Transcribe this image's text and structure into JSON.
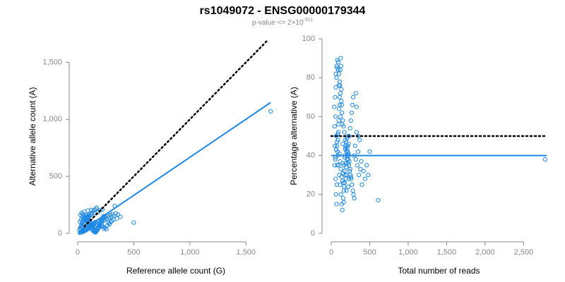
{
  "title": "rs1049072 - ENSG00000179344",
  "subtitle": {
    "base": "p-value <= 2×10",
    "exponent": "-311"
  },
  "colors": {
    "point": "#1E88E5",
    "line": "#1E88E5",
    "reference": "#000000",
    "tick": "#888888"
  },
  "chart_data": [
    {
      "type": "scatter",
      "xlabel": "Reference allele count (G)",
      "ylabel": "Alternative allele count (A)",
      "xlim": [
        0,
        1750
      ],
      "ylim": [
        0,
        1700
      ],
      "x_ticks": [
        "0",
        "500",
        "1,000",
        "1,500"
      ],
      "y_ticks": [
        "0",
        "500",
        "1,000",
        "1,500"
      ],
      "grid": false,
      "reference_line": {
        "style": "dotted",
        "slope": 1,
        "intercept": 0,
        "x_range": [
          60,
          1700
        ]
      },
      "fit_line": {
        "style": "solid",
        "slope": 0.667,
        "intercept": 0,
        "x_range": [
          60,
          1720
        ]
      },
      "points": [
        [
          20,
          5
        ],
        [
          25,
          10
        ],
        [
          30,
          8
        ],
        [
          35,
          15
        ],
        [
          40,
          20
        ],
        [
          45,
          12
        ],
        [
          50,
          25
        ],
        [
          55,
          18
        ],
        [
          60,
          30
        ],
        [
          65,
          22
        ],
        [
          70,
          40
        ],
        [
          75,
          28
        ],
        [
          80,
          35
        ],
        [
          85,
          45
        ],
        [
          90,
          50
        ],
        [
          95,
          38
        ],
        [
          100,
          60
        ],
        [
          105,
          55
        ],
        [
          110,
          48
        ],
        [
          115,
          70
        ],
        [
          120,
          65
        ],
        [
          125,
          80
        ],
        [
          130,
          58
        ],
        [
          135,
          75
        ],
        [
          140,
          90
        ],
        [
          145,
          68
        ],
        [
          150,
          85
        ],
        [
          160,
          100
        ],
        [
          170,
          78
        ],
        [
          180,
          95
        ],
        [
          190,
          110
        ],
        [
          200,
          88
        ],
        [
          210,
          120
        ],
        [
          220,
          105
        ],
        [
          230,
          130
        ],
        [
          240,
          115
        ],
        [
          250,
          140
        ],
        [
          260,
          125
        ],
        [
          270,
          150
        ],
        [
          280,
          135
        ],
        [
          290,
          160
        ],
        [
          300,
          145
        ],
        [
          310,
          170
        ],
        [
          320,
          155
        ],
        [
          340,
          175
        ],
        [
          330,
          240
        ],
        [
          30,
          40
        ],
        [
          40,
          55
        ],
        [
          50,
          65
        ],
        [
          60,
          80
        ],
        [
          70,
          95
        ],
        [
          80,
          110
        ],
        [
          90,
          125
        ],
        [
          100,
          140
        ],
        [
          110,
          155
        ],
        [
          120,
          165
        ],
        [
          130,
          180
        ],
        [
          140,
          195
        ],
        [
          150,
          205
        ],
        [
          160,
          215
        ],
        [
          170,
          225
        ],
        [
          180,
          185
        ],
        [
          200,
          200
        ],
        [
          220,
          210
        ],
        [
          60,
          190
        ],
        [
          90,
          200
        ],
        [
          120,
          205
        ],
        [
          150,
          180
        ],
        [
          20,
          100
        ],
        [
          30,
          120
        ],
        [
          40,
          140
        ],
        [
          25,
          160
        ],
        [
          35,
          180
        ],
        [
          45,
          170
        ],
        [
          55,
          150
        ],
        [
          65,
          130
        ],
        [
          75,
          115
        ],
        [
          85,
          100
        ],
        [
          95,
          85
        ],
        [
          105,
          70
        ],
        [
          115,
          50
        ],
        [
          125,
          35
        ],
        [
          135,
          25
        ],
        [
          145,
          15
        ],
        [
          155,
          10
        ],
        [
          165,
          20
        ],
        [
          175,
          30
        ],
        [
          185,
          45
        ],
        [
          195,
          55
        ],
        [
          205,
          65
        ],
        [
          215,
          75
        ],
        [
          225,
          60
        ],
        [
          235,
          40
        ],
        [
          245,
          50
        ],
        [
          255,
          35
        ],
        [
          265,
          70
        ],
        [
          275,
          90
        ],
        [
          285,
          80
        ],
        [
          295,
          100
        ],
        [
          305,
          110
        ],
        [
          320,
          120
        ],
        [
          350,
          130
        ],
        [
          360,
          165
        ],
        [
          380,
          145
        ],
        [
          500,
          95
        ],
        [
          1720,
          1070
        ],
        [
          15,
          30
        ],
        [
          22,
          45
        ],
        [
          28,
          60
        ],
        [
          33,
          70
        ],
        [
          38,
          85
        ],
        [
          42,
          95
        ],
        [
          48,
          105
        ],
        [
          52,
          115
        ],
        [
          58,
          125
        ],
        [
          62,
          135
        ],
        [
          68,
          145
        ],
        [
          72,
          155
        ],
        [
          78,
          118
        ],
        [
          82,
          128
        ],
        [
          88,
          138
        ],
        [
          92,
          148
        ],
        [
          98,
          158
        ],
        [
          102,
          168
        ],
        [
          108,
          108
        ],
        [
          112,
          98
        ],
        [
          118,
          88
        ],
        [
          122,
          78
        ],
        [
          128,
          68
        ],
        [
          132,
          58
        ],
        [
          138,
          48
        ],
        [
          142,
          38
        ],
        [
          148,
          28
        ],
        [
          152,
          18
        ],
        [
          158,
          8
        ],
        [
          162,
          12
        ],
        [
          168,
          22
        ],
        [
          172,
          32
        ],
        [
          178,
          42
        ],
        [
          182,
          52
        ],
        [
          188,
          62
        ],
        [
          192,
          72
        ],
        [
          198,
          82
        ],
        [
          202,
          92
        ],
        [
          208,
          102
        ],
        [
          212,
          112
        ],
        [
          218,
          122
        ],
        [
          222,
          132
        ],
        [
          228,
          142
        ],
        [
          232,
          152
        ]
      ]
    },
    {
      "type": "scatter",
      "xlabel": "Total number of reads",
      "ylabel": "Percentage alternative (A)",
      "xlim": [
        0,
        2800
      ],
      "ylim": [
        0,
        100
      ],
      "x_ticks": [
        "0",
        "500",
        "1,000",
        "1,500",
        "2,000",
        "2,500"
      ],
      "y_ticks": [
        "0",
        "20",
        "40",
        "60",
        "80",
        "100"
      ],
      "grid": false,
      "reference_line": {
        "style": "dotted",
        "y": 50,
        "x_range": [
          0,
          2800
        ]
      },
      "fit_line": {
        "style": "solid",
        "y": 40,
        "x_range": [
          0,
          2800
        ]
      },
      "points": [
        [
          50,
          70
        ],
        [
          60,
          75
        ],
        [
          70,
          80
        ],
        [
          80,
          85
        ],
        [
          90,
          88
        ],
        [
          100,
          82
        ],
        [
          110,
          78
        ],
        [
          120,
          72
        ],
        [
          130,
          68
        ],
        [
          140,
          62
        ],
        [
          150,
          58
        ],
        [
          160,
          55
        ],
        [
          170,
          52
        ],
        [
          180,
          48
        ],
        [
          190,
          45
        ],
        [
          200,
          42
        ],
        [
          210,
          40
        ],
        [
          220,
          38
        ],
        [
          230,
          35
        ],
        [
          240,
          32
        ],
        [
          250,
          30
        ],
        [
          260,
          28
        ],
        [
          270,
          25
        ],
        [
          280,
          22
        ],
        [
          290,
          20
        ],
        [
          300,
          18
        ],
        [
          55,
          60
        ],
        [
          65,
          50
        ],
        [
          75,
          45
        ],
        [
          85,
          40
        ],
        [
          95,
          35
        ],
        [
          105,
          30
        ],
        [
          115,
          25
        ],
        [
          125,
          20
        ],
        [
          135,
          15
        ],
        [
          145,
          12
        ],
        [
          155,
          18
        ],
        [
          165,
          22
        ],
        [
          175,
          26
        ],
        [
          185,
          30
        ],
        [
          195,
          34
        ],
        [
          205,
          38
        ],
        [
          215,
          42
        ],
        [
          225,
          46
        ],
        [
          235,
          50
        ],
        [
          245,
          54
        ],
        [
          255,
          58
        ],
        [
          265,
          62
        ],
        [
          275,
          66
        ],
        [
          285,
          70
        ],
        [
          40,
          65
        ],
        [
          45,
          55
        ],
        [
          48,
          45
        ],
        [
          52,
          38
        ],
        [
          58,
          28
        ],
        [
          62,
          20
        ],
        [
          68,
          15
        ],
        [
          72,
          25
        ],
        [
          78,
          35
        ],
        [
          82,
          42
        ],
        [
          88,
          48
        ],
        [
          92,
          52
        ],
        [
          98,
          58
        ],
        [
          102,
          64
        ],
        [
          108,
          70
        ],
        [
          112,
          76
        ],
        [
          118,
          84
        ],
        [
          122,
          90
        ],
        [
          128,
          86
        ],
        [
          132,
          74
        ],
        [
          138,
          66
        ],
        [
          142,
          56
        ],
        [
          148,
          46
        ],
        [
          152,
          36
        ],
        [
          158,
          26
        ],
        [
          162,
          16
        ],
        [
          168,
          24
        ],
        [
          172,
          32
        ],
        [
          178,
          40
        ],
        [
          182,
          44
        ],
        [
          188,
          36
        ],
        [
          192,
          28
        ],
        [
          198,
          22
        ],
        [
          202,
          30
        ],
        [
          208,
          44
        ],
        [
          212,
          50
        ],
        [
          218,
          36
        ],
        [
          222,
          24
        ],
        [
          228,
          40
        ],
        [
          232,
          28
        ],
        [
          300,
          40
        ],
        [
          310,
          45
        ],
        [
          320,
          38
        ],
        [
          330,
          52
        ],
        [
          340,
          35
        ],
        [
          350,
          42
        ],
        [
          360,
          30
        ],
        [
          370,
          48
        ],
        [
          380,
          33
        ],
        [
          390,
          37
        ],
        [
          400,
          25
        ],
        [
          420,
          32
        ],
        [
          440,
          28
        ],
        [
          460,
          35
        ],
        [
          480,
          30
        ],
        [
          500,
          42
        ],
        [
          320,
          72
        ],
        [
          330,
          65
        ],
        [
          350,
          50
        ],
        [
          610,
          17
        ],
        [
          2780,
          38
        ],
        [
          60,
          82
        ],
        [
          70,
          86
        ],
        [
          80,
          89
        ],
        [
          90,
          84
        ],
        [
          100,
          76
        ],
        [
          110,
          66
        ],
        [
          120,
          60
        ],
        [
          95,
          56
        ],
        [
          85,
          51
        ],
        [
          75,
          47
        ],
        [
          65,
          43
        ],
        [
          55,
          39
        ],
        [
          45,
          35
        ],
        [
          105,
          41
        ],
        [
          115,
          37
        ],
        [
          125,
          33
        ],
        [
          135,
          29
        ],
        [
          145,
          27
        ],
        [
          155,
          31
        ],
        [
          165,
          35
        ],
        [
          175,
          39
        ],
        [
          185,
          43
        ],
        [
          195,
          47
        ],
        [
          205,
          49
        ],
        [
          215,
          45
        ],
        [
          225,
          41
        ],
        [
          235,
          37
        ],
        [
          245,
          33
        ],
        [
          255,
          29
        ]
      ]
    }
  ]
}
